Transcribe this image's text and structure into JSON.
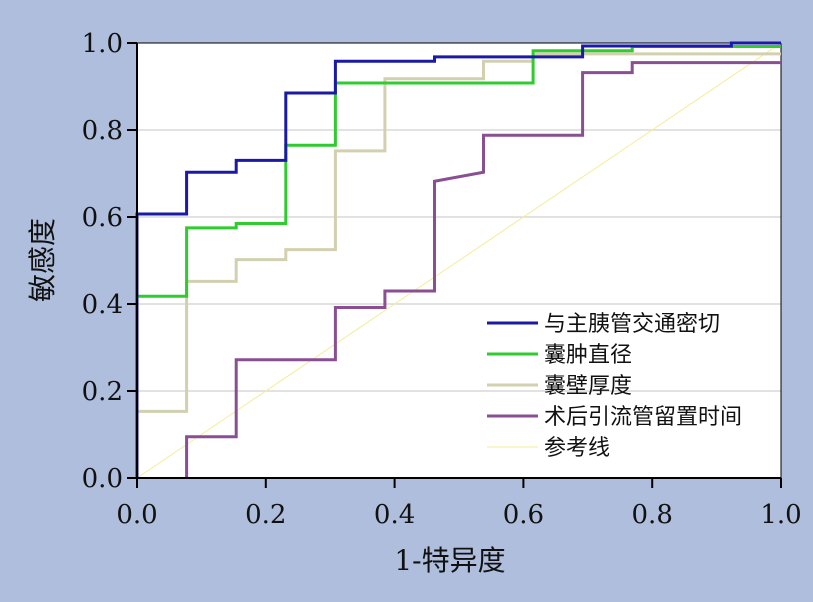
{
  "chart_data": {
    "type": "line",
    "title": "",
    "xlabel": "1-特异度",
    "ylabel": "敏感度",
    "xlim": [
      0,
      1
    ],
    "ylim": [
      0,
      1
    ],
    "xticks": [
      "0.0",
      "0.2",
      "0.4",
      "0.6",
      "0.8",
      "1.0"
    ],
    "yticks": [
      "0.0",
      "0.2",
      "0.4",
      "0.6",
      "0.8",
      "1.0"
    ],
    "grid": "horizontal",
    "legend_position": "bottom-right",
    "series": [
      {
        "name": "与主胰管交通密切",
        "color": "#1a1aa6",
        "x": [
          0.0,
          0.0,
          0.077,
          0.077,
          0.154,
          0.154,
          0.231,
          0.231,
          0.308,
          0.308,
          0.462,
          0.462,
          0.692,
          0.692,
          0.923,
          0.923,
          1.0
        ],
        "y": [
          0.0,
          0.607,
          0.607,
          0.703,
          0.703,
          0.73,
          0.73,
          0.885,
          0.885,
          0.958,
          0.958,
          0.968,
          0.968,
          0.993,
          0.993,
          1.0,
          1.0
        ]
      },
      {
        "name": "囊肿直径",
        "color": "#2fcc2f",
        "x": [
          0.0,
          0.0,
          0.0,
          0.077,
          0.077,
          0.154,
          0.154,
          0.231,
          0.231,
          0.308,
          0.308,
          0.615,
          0.615,
          0.769,
          0.769,
          1.0
        ],
        "y": [
          0.0,
          0.158,
          0.418,
          0.418,
          0.575,
          0.575,
          0.585,
          0.585,
          0.765,
          0.765,
          0.908,
          0.908,
          0.982,
          0.982,
          0.992,
          0.992
        ]
      },
      {
        "name": "囊壁厚度",
        "color": "#d2d0ae",
        "x": [
          0.0,
          0.0,
          0.077,
          0.077,
          0.154,
          0.154,
          0.231,
          0.231,
          0.308,
          0.308,
          0.385,
          0.385,
          0.538,
          0.538,
          0.615,
          0.615,
          1.0
        ],
        "y": [
          0.0,
          0.153,
          0.153,
          0.452,
          0.452,
          0.502,
          0.502,
          0.525,
          0.525,
          0.752,
          0.752,
          0.918,
          0.918,
          0.958,
          0.958,
          0.975,
          0.975
        ]
      },
      {
        "name": "术后引流管留置时间",
        "color": "#8a4e92",
        "x": [
          0.077,
          0.077,
          0.154,
          0.154,
          0.308,
          0.308,
          0.385,
          0.385,
          0.462,
          0.462,
          0.538,
          0.538,
          0.692,
          0.692,
          0.769,
          0.769,
          1.0
        ],
        "y": [
          0.0,
          0.095,
          0.095,
          0.272,
          0.272,
          0.392,
          0.392,
          0.43,
          0.43,
          0.682,
          0.703,
          0.788,
          0.788,
          0.932,
          0.932,
          0.955,
          0.955
        ]
      },
      {
        "name": "参考线",
        "color": "#f3ed96",
        "x": [
          0,
          1
        ],
        "y": [
          0,
          1
        ]
      }
    ]
  }
}
